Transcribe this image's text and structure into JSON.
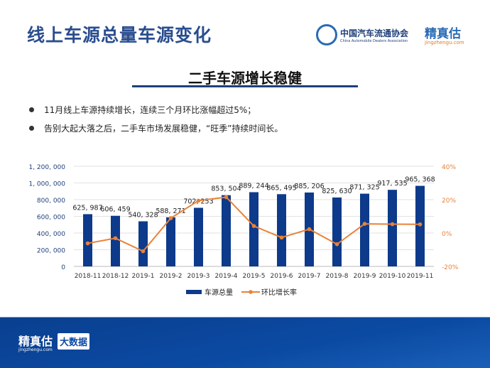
{
  "header": {
    "title": "线上车源总量车源变化",
    "caada_name": "中国汽车流通协会",
    "caada_en": "China Automobile Dealers Association",
    "brand": "精真估",
    "brand_url": "jingzhengu.com"
  },
  "section_title": "二手车源增长稳健",
  "bullets": [
    "11月线上车源持续增长，连续三个月环比涨幅超过5%；",
    "告别大起大落之后，二手车市场发展稳健，“旺季”持续时间长。"
  ],
  "footer": {
    "brand": "精真估",
    "brand_url": "jingzhengu.com",
    "tag": "大数据"
  },
  "chart_data": {
    "type": "bar+line",
    "categories": [
      "2018-11",
      "2018-12",
      "2019-1",
      "2019-2",
      "2019-3",
      "2019-4",
      "2019-5",
      "2019-6",
      "2019-7",
      "2019-8",
      "2019-9",
      "2019-10",
      "2019-11"
    ],
    "series": [
      {
        "name": "车源总量",
        "type": "bar",
        "axis": "left",
        "color": "#0d3a8a",
        "values": [
          625987,
          606459,
          540328,
          588271,
          702253,
          853504,
          889244,
          865495,
          885206,
          825630,
          871325,
          917535,
          965368
        ],
        "labels": [
          "625, 987",
          "606, 459",
          "540, 328",
          "588, 271",
          "702, 253",
          "853, 504",
          "889, 244",
          "865, 495",
          "885, 206",
          "825, 630",
          "871, 325",
          "917, 535",
          "965, 368"
        ]
      },
      {
        "name": "环比增长率",
        "type": "line",
        "axis": "right",
        "color": "#e8823a",
        "values": [
          -6.2,
          -3.1,
          -10.9,
          8.9,
          19.4,
          21.5,
          4.2,
          -2.7,
          2.3,
          -6.7,
          5.5,
          5.3,
          5.2
        ]
      }
    ],
    "left_axis": {
      "ylim": [
        0,
        1200000
      ],
      "ticks": [
        "0",
        "200, 000",
        "400, 000",
        "600, 000",
        "800, 000",
        "1, 000, 000",
        "1, 200, 000"
      ]
    },
    "right_axis": {
      "ylim": [
        -20,
        40
      ],
      "ticks": [
        "-20%",
        "0%",
        "20%",
        "40%"
      ]
    },
    "grid": true,
    "legend": "bottom"
  }
}
